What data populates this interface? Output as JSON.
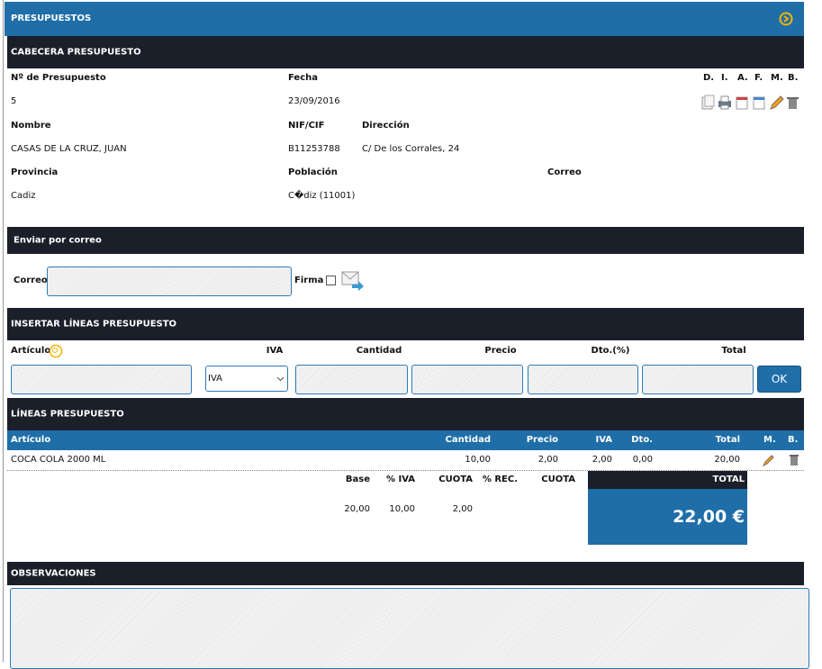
{
  "header": {
    "title": "PRESUPUESTOS"
  },
  "cabecera": {
    "title": "CABECERA PRESUPUESTO",
    "fields": [
      {
        "label": "Nº de Presupuesto",
        "value": "5"
      },
      {
        "label": "Fecha",
        "value": "23/09/2016"
      },
      {
        "label": "Nombre",
        "value": "CASAS DE LA CRUZ, JUAN"
      },
      {
        "label": "NIF/CIF",
        "value": "B11253788"
      },
      {
        "label": "Dirección",
        "value": "C/ De los Corrales, 24"
      },
      {
        "label": "Provincia",
        "value": "Cadiz"
      },
      {
        "label": "Población",
        "value": "C�diz (11001)"
      }
    ],
    "correo_label": "Correo",
    "actions": [
      "D.",
      "I.",
      "A.",
      "F.",
      "M.",
      "B."
    ]
  },
  "enviar": {
    "title": "Enviar por correo",
    "correo_label": "Correo",
    "firma_label": "Firma"
  },
  "insertar": {
    "title": "INSERTAR LÍNEAS PRESUPUESTO",
    "columns": [
      "Artículo",
      "IVA",
      "Cantidad",
      "Precio",
      "Dto.(%)",
      "Total"
    ],
    "iva_placeholder": "IVA",
    "button": "OK"
  },
  "lineas": {
    "title": "LÍNEAS PRESUPUESTO",
    "columns": [
      "Artículo",
      "Cantidad",
      "Precio",
      "IVA",
      "Dto.",
      "Total",
      "M.",
      "B."
    ],
    "rows": [
      [
        "COCA COLA 2000 ML",
        "10,00",
        "2,00",
        "2,00",
        "0,00",
        "20,00"
      ]
    ]
  },
  "totales": {
    "columns": [
      "Base",
      "% IVA",
      "CUOTA",
      "% REC.",
      "CUOTA"
    ],
    "values": [
      "20,00",
      "10,00",
      "2,00"
    ],
    "total_label": "TOTAL",
    "total": "22,00 €"
  },
  "observaciones": {
    "title": "OBSERVACIONES"
  }
}
